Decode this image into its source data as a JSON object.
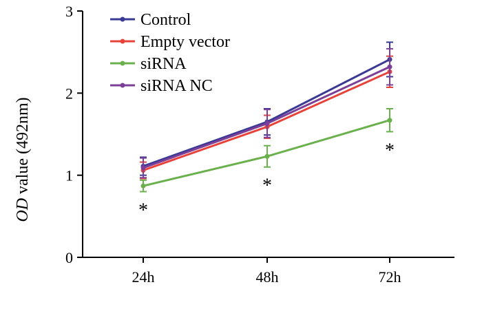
{
  "chart_data": {
    "type": "line",
    "title": "",
    "xlabel": "",
    "ylabel_italic": "OD",
    "ylabel_rest": " value (492nm)",
    "categories": [
      "24h",
      "48h",
      "72h"
    ],
    "ylim": [
      0,
      3
    ],
    "yticks": [
      "0",
      "1",
      "2",
      "3"
    ],
    "grid": false,
    "legend_position": "top-left",
    "series": [
      {
        "name": "Control",
        "color": "#3a3a96",
        "values": [
          1.11,
          1.65,
          2.41
        ],
        "errors": [
          0.11,
          0.16,
          0.21
        ]
      },
      {
        "name": "Empty vector",
        "color": "#e8433a",
        "values": [
          1.06,
          1.59,
          2.26
        ],
        "errors": [
          0.1,
          0.14,
          0.19
        ]
      },
      {
        "name": "siRNA",
        "color": "#6ab04c",
        "values": [
          0.87,
          1.23,
          1.67
        ],
        "errors": [
          0.07,
          0.13,
          0.14
        ]
      },
      {
        "name": "siRNA NC",
        "color": "#7b3f98",
        "values": [
          1.09,
          1.63,
          2.32
        ],
        "errors": [
          0.12,
          0.17,
          0.22
        ]
      }
    ],
    "annotations": [
      {
        "category": "24h",
        "text": "*"
      },
      {
        "category": "48h",
        "text": "*"
      },
      {
        "category": "72h",
        "text": "*"
      }
    ]
  }
}
